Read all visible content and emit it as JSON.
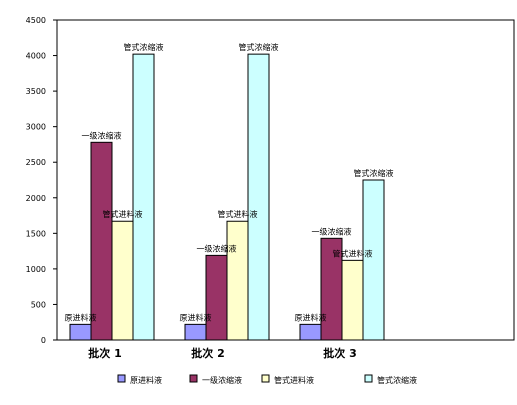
{
  "chart_data": {
    "type": "bar",
    "categories": [
      "批次 1",
      "批次 2",
      "批次 3"
    ],
    "series": [
      {
        "name": "原进料液",
        "color": "#9999ff",
        "values": [
          220,
          220,
          220
        ],
        "bar_label": "原进料液"
      },
      {
        "name": "一级浓缩液",
        "color": "#993366",
        "values": [
          2780,
          1190,
          1430
        ],
        "bar_label": "一级浓缩液"
      },
      {
        "name": "管式进料液",
        "color": "#ffffcc",
        "values": [
          1670,
          1670,
          1120
        ],
        "bar_label": "管式进料液"
      },
      {
        "name": "管式浓缩液",
        "color": "#ccffff",
        "values": [
          4020,
          4020,
          2250
        ],
        "bar_label": "管式浓缩液"
      }
    ],
    "ylim": [
      0,
      4500
    ],
    "yticks": [
      "0",
      "500",
      "1000",
      "1500",
      "2000",
      "2500",
      "3000",
      "3500",
      "4000",
      "4500"
    ],
    "grid": false,
    "legend_position": "bottom",
    "title": "",
    "xlabel": "",
    "ylabel": ""
  }
}
